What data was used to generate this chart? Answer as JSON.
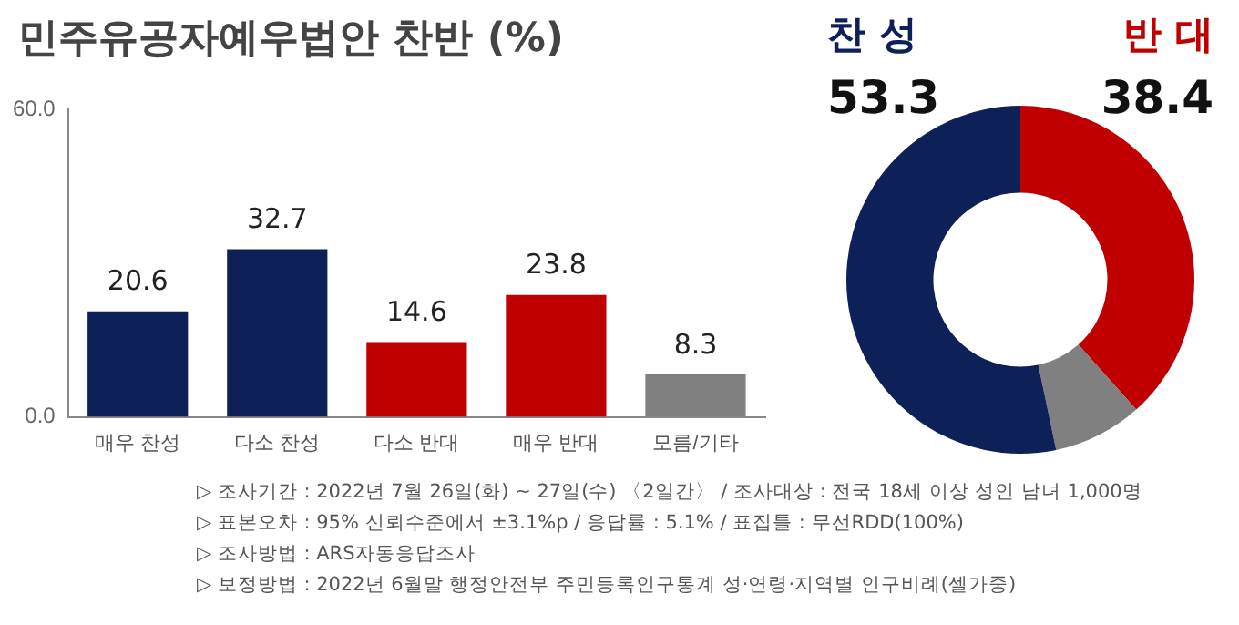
{
  "chart_data": [
    {
      "type": "bar",
      "title": "민주유공자예우법안 찬반 (%)",
      "categories": [
        "매우 찬성",
        "다소 찬성",
        "다소 반대",
        "매우 반대",
        "모름/기타"
      ],
      "values": [
        20.6,
        32.7,
        14.6,
        23.8,
        8.3
      ],
      "colors": [
        "#0d2158",
        "#0d2158",
        "#c00000",
        "#c00000",
        "#808080"
      ],
      "ylim": [
        0,
        60
      ],
      "yticks": [
        {
          "value": 0,
          "label": "0.0"
        },
        {
          "value": 60,
          "label": "60.0"
        }
      ],
      "data_labels": true,
      "annotations": [
        "▷ 조사기간 : 2022년 7월 26일(화) ~ 27일(수) 〈2일간〉 / 조사대상 : 전국 18세 이상 성인 남녀 1,000명",
        "▷ 표본오차 : 95% 신뢰수준에서 ±3.1%p / 응답률 : 5.1% / 표집틀 : 무선RDD(100%)",
        "▷ 조사방법 : ARS자동응답조사",
        "▷ 보정방법 : 2022년 6월말 행정안전부 주민등록인구통계 성·연령·지역별 인구비례(셀가중)"
      ]
    },
    {
      "type": "donut",
      "categories": [
        "반 대",
        null,
        "찬 성"
      ],
      "values": [
        38.4,
        8.3,
        53.3
      ],
      "colors": [
        "#c00000",
        "#808080",
        "#0d2158"
      ],
      "value_labels": [
        "38.4",
        null,
        "53.3"
      ]
    }
  ]
}
